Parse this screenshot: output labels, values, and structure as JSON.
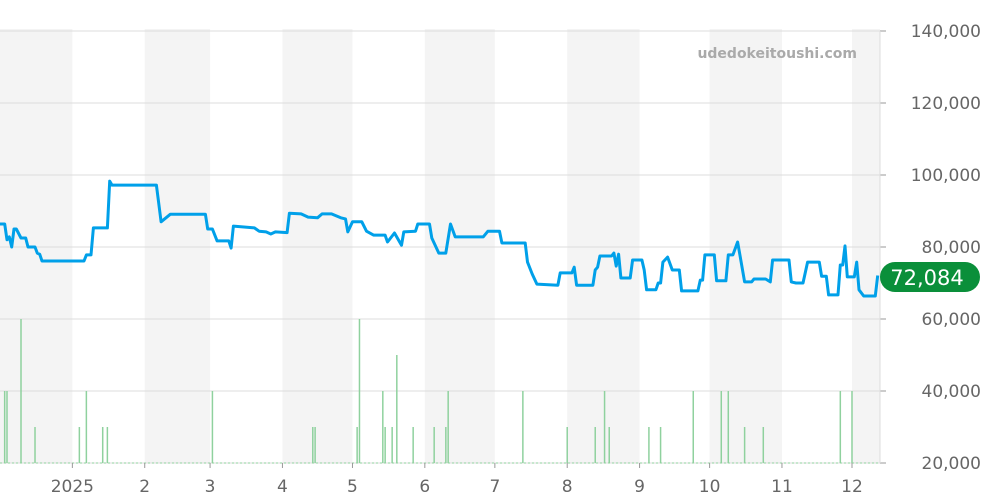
{
  "watermark": "udedokeitoushi.com",
  "current_price_label": "72,084",
  "colors": {
    "line": "#00a0e9",
    "volume": "#8fd19e",
    "badge": "#0a8f3a",
    "band": "#f4f4f4",
    "grid": "#dddddd"
  },
  "chart_data": {
    "type": "line",
    "title": "",
    "xlabel": "",
    "ylabel": "",
    "x_range": [
      "2024-12-01",
      "2025-12-13"
    ],
    "ylim": [
      20000,
      140000
    ],
    "y_ticks": [
      20000,
      40000,
      60000,
      80000,
      100000,
      120000,
      140000
    ],
    "y_tick_labels": [
      "20,000",
      "40,000",
      "60,000",
      "80,000",
      "100,000",
      "120,000",
      "140,000"
    ],
    "x_ticks": [
      {
        "date": "2025-01-01",
        "label": "2025"
      },
      {
        "date": "2025-02-01",
        "label": "2"
      },
      {
        "date": "2025-03-01",
        "label": "3"
      },
      {
        "date": "2025-04-01",
        "label": "4"
      },
      {
        "date": "2025-05-01",
        "label": "5"
      },
      {
        "date": "2025-06-01",
        "label": "6"
      },
      {
        "date": "2025-07-01",
        "label": "7"
      },
      {
        "date": "2025-08-01",
        "label": "8"
      },
      {
        "date": "2025-09-01",
        "label": "9"
      },
      {
        "date": "2025-10-01",
        "label": "10"
      },
      {
        "date": "2025-11-01",
        "label": "11"
      },
      {
        "date": "2025-12-01",
        "label": "12"
      }
    ],
    "grid": true,
    "axis_position": "right",
    "alternating_month_bands": true,
    "current_value": 72084,
    "price": [
      [
        "2024-12-01",
        86400
      ],
      [
        "2024-12-03",
        86400
      ],
      [
        "2024-12-04",
        82000
      ],
      [
        "2024-12-05",
        82800
      ],
      [
        "2024-12-06",
        80000
      ],
      [
        "2024-12-07",
        85000
      ],
      [
        "2024-12-08",
        85000
      ],
      [
        "2024-12-10",
        82500
      ],
      [
        "2024-12-12",
        82500
      ],
      [
        "2024-12-13",
        80000
      ],
      [
        "2024-12-16",
        80000
      ],
      [
        "2024-12-17",
        78300
      ],
      [
        "2024-12-18",
        78000
      ],
      [
        "2024-12-19",
        76100
      ],
      [
        "2025-01-06",
        76100
      ],
      [
        "2025-01-07",
        77800
      ],
      [
        "2025-01-09",
        77800
      ],
      [
        "2025-01-10",
        85300
      ],
      [
        "2025-01-16",
        85300
      ],
      [
        "2025-01-17",
        98300
      ],
      [
        "2025-01-18",
        97200
      ],
      [
        "2025-02-06",
        97200
      ],
      [
        "2025-02-08",
        87000
      ],
      [
        "2025-02-12",
        89100
      ],
      [
        "2025-02-27",
        89100
      ],
      [
        "2025-02-28",
        85000
      ],
      [
        "2025-03-02",
        85000
      ],
      [
        "2025-03-04",
        81700
      ],
      [
        "2025-03-09",
        81700
      ],
      [
        "2025-03-10",
        79700
      ],
      [
        "2025-03-11",
        85800
      ],
      [
        "2025-03-20",
        85300
      ],
      [
        "2025-03-22",
        84400
      ],
      [
        "2025-03-25",
        84200
      ],
      [
        "2025-03-27",
        83600
      ],
      [
        "2025-03-29",
        84200
      ],
      [
        "2025-04-03",
        84000
      ],
      [
        "2025-04-04",
        89400
      ],
      [
        "2025-04-09",
        89200
      ],
      [
        "2025-04-12",
        88300
      ],
      [
        "2025-04-16",
        88100
      ],
      [
        "2025-04-18",
        89200
      ],
      [
        "2025-04-22",
        89200
      ],
      [
        "2025-04-26",
        88100
      ],
      [
        "2025-04-28",
        87800
      ],
      [
        "2025-04-29",
        84200
      ],
      [
        "2025-05-01",
        87000
      ],
      [
        "2025-05-05",
        87000
      ],
      [
        "2025-05-07",
        84400
      ],
      [
        "2025-05-10",
        83300
      ],
      [
        "2025-05-15",
        83300
      ],
      [
        "2025-05-16",
        81400
      ],
      [
        "2025-05-19",
        83900
      ],
      [
        "2025-05-22",
        80500
      ],
      [
        "2025-05-23",
        84200
      ],
      [
        "2025-05-28",
        84400
      ],
      [
        "2025-05-29",
        86400
      ],
      [
        "2025-06-03",
        86400
      ],
      [
        "2025-06-04",
        82500
      ],
      [
        "2025-06-07",
        78300
      ],
      [
        "2025-06-10",
        78300
      ],
      [
        "2025-06-12",
        86400
      ],
      [
        "2025-06-14",
        82800
      ],
      [
        "2025-06-26",
        82800
      ],
      [
        "2025-06-28",
        84400
      ],
      [
        "2025-07-03",
        84400
      ],
      [
        "2025-07-04",
        81100
      ],
      [
        "2025-07-14",
        81100
      ],
      [
        "2025-07-15",
        75800
      ],
      [
        "2025-07-17",
        72500
      ],
      [
        "2025-07-19",
        69700
      ],
      [
        "2025-07-28",
        69400
      ],
      [
        "2025-07-29",
        72800
      ],
      [
        "2025-08-03",
        72800
      ],
      [
        "2025-08-04",
        74400
      ],
      [
        "2025-08-05",
        69400
      ],
      [
        "2025-08-12",
        69400
      ],
      [
        "2025-08-13",
        73600
      ],
      [
        "2025-08-14",
        74400
      ],
      [
        "2025-08-15",
        77500
      ],
      [
        "2025-08-20",
        77500
      ],
      [
        "2025-08-21",
        78300
      ],
      [
        "2025-08-22",
        74700
      ],
      [
        "2025-08-23",
        78000
      ],
      [
        "2025-08-24",
        71400
      ],
      [
        "2025-08-28",
        71400
      ],
      [
        "2025-08-29",
        76400
      ],
      [
        "2025-09-02",
        76400
      ],
      [
        "2025-09-03",
        73600
      ],
      [
        "2025-09-04",
        68100
      ],
      [
        "2025-09-08",
        68100
      ],
      [
        "2025-09-09",
        70000
      ],
      [
        "2025-09-10",
        70000
      ],
      [
        "2025-09-11",
        75800
      ],
      [
        "2025-09-13",
        77200
      ],
      [
        "2025-09-15",
        73600
      ],
      [
        "2025-09-18",
        73600
      ],
      [
        "2025-09-19",
        67800
      ],
      [
        "2025-09-26",
        67800
      ],
      [
        "2025-09-27",
        70800
      ],
      [
        "2025-09-28",
        70800
      ],
      [
        "2025-09-29",
        77800
      ],
      [
        "2025-10-03",
        77800
      ],
      [
        "2025-10-04",
        70600
      ],
      [
        "2025-10-08",
        70600
      ],
      [
        "2025-10-09",
        77800
      ],
      [
        "2025-10-11",
        77800
      ],
      [
        "2025-10-13",
        81400
      ],
      [
        "2025-10-14",
        77800
      ],
      [
        "2025-10-16",
        70300
      ],
      [
        "2025-10-19",
        70300
      ],
      [
        "2025-10-20",
        71100
      ],
      [
        "2025-10-25",
        71100
      ],
      [
        "2025-10-27",
        70300
      ],
      [
        "2025-10-28",
        76400
      ],
      [
        "2025-11-04",
        76400
      ],
      [
        "2025-11-05",
        70300
      ],
      [
        "2025-11-07",
        70000
      ],
      [
        "2025-11-10",
        70000
      ],
      [
        "2025-11-12",
        75800
      ],
      [
        "2025-11-17",
        75800
      ],
      [
        "2025-11-18",
        71900
      ],
      [
        "2025-11-20",
        71900
      ],
      [
        "2025-11-21",
        66700
      ],
      [
        "2025-11-25",
        66700
      ],
      [
        "2025-11-26",
        75000
      ],
      [
        "2025-11-27",
        75000
      ],
      [
        "2025-11-28",
        80300
      ],
      [
        "2025-11-29",
        71700
      ],
      [
        "2025-12-02",
        71700
      ],
      [
        "2025-12-03",
        75800
      ],
      [
        "2025-12-04",
        68100
      ],
      [
        "2025-12-06",
        66400
      ],
      [
        "2025-12-11",
        66400
      ],
      [
        "2025-12-12",
        72084
      ]
    ],
    "volume": [
      [
        "2024-12-03",
        40000
      ],
      [
        "2024-12-04",
        40000
      ],
      [
        "2024-12-10",
        60000
      ],
      [
        "2024-12-16",
        30000
      ],
      [
        "2025-01-04",
        30000
      ],
      [
        "2025-01-07",
        40000
      ],
      [
        "2025-01-14",
        30000
      ],
      [
        "2025-01-16",
        30000
      ],
      [
        "2025-03-02",
        40000
      ],
      [
        "2025-04-14",
        30000
      ],
      [
        "2025-04-15",
        30000
      ],
      [
        "2025-05-03",
        30000
      ],
      [
        "2025-05-04",
        60000
      ],
      [
        "2025-05-14",
        40000
      ],
      [
        "2025-05-15",
        30000
      ],
      [
        "2025-05-18",
        30000
      ],
      [
        "2025-05-20",
        50000
      ],
      [
        "2025-05-27",
        30000
      ],
      [
        "2025-06-05",
        30000
      ],
      [
        "2025-06-10",
        30000
      ],
      [
        "2025-06-11",
        40000
      ],
      [
        "2025-07-13",
        40000
      ],
      [
        "2025-08-01",
        30000
      ],
      [
        "2025-08-13",
        30000
      ],
      [
        "2025-08-17",
        40000
      ],
      [
        "2025-08-19",
        30000
      ],
      [
        "2025-09-05",
        30000
      ],
      [
        "2025-09-10",
        30000
      ],
      [
        "2025-09-24",
        40000
      ],
      [
        "2025-10-06",
        40000
      ],
      [
        "2025-10-09",
        40000
      ],
      [
        "2025-10-16",
        30000
      ],
      [
        "2025-10-24",
        30000
      ],
      [
        "2025-11-26",
        40000
      ],
      [
        "2025-12-01",
        40000
      ]
    ]
  }
}
